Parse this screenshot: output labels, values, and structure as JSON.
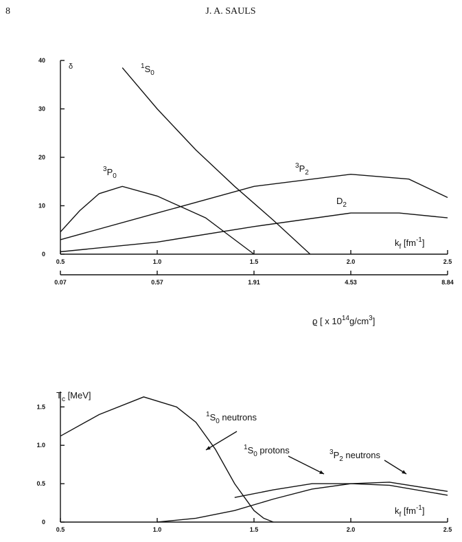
{
  "header": {
    "page_number": "8",
    "author": "J. A. SAULS"
  },
  "chart_data": [
    {
      "type": "line",
      "y_label": "δ",
      "x_label": [
        "k",
        "f",
        " [fm",
        "-1",
        "]"
      ],
      "x2_label": [
        "ϱ [ x 10",
        "14",
        "g/cm",
        "3",
        "]"
      ],
      "xlim": [
        0.5,
        2.5
      ],
      "ylim": [
        0,
        40
      ],
      "xticks": [
        0.5,
        {
          "value": 1,
          "label": "1.0"
        },
        1.5,
        {
          "value": 2,
          "label": "2.0"
        },
        2.5
      ],
      "yticks": [
        0,
        10,
        20,
        30,
        40
      ],
      "x2ticks": [
        {
          "value": 0.5,
          "label": "0.07"
        },
        {
          "value": 1,
          "label": "0.57"
        },
        {
          "value": 1.5,
          "label": "1.91"
        },
        {
          "value": 2,
          "label": "4.53"
        },
        {
          "value": 2.5,
          "label": "8.84"
        }
      ],
      "series": [
        {
          "label_parts": [
            "1",
            "S",
            "0"
          ],
          "color": "#111111",
          "x": [
            0.82,
            1.0,
            1.2,
            1.4,
            1.6,
            1.79
          ],
          "values": [
            38.5,
            30,
            21.5,
            14,
            7,
            0
          ]
        },
        {
          "label_parts": [
            "3",
            "P",
            "0"
          ],
          "color": "#111111",
          "x": [
            0.5,
            0.6,
            0.7,
            0.82,
            1.0,
            1.25,
            1.5
          ],
          "values": [
            4.6,
            9,
            12.5,
            14,
            12,
            7.5,
            0
          ]
        },
        {
          "label_parts": [
            "3",
            "P",
            "2"
          ],
          "color": "#111111",
          "x": [
            0.5,
            1.0,
            1.5,
            2.0,
            2.3,
            2.5
          ],
          "values": [
            3,
            8.5,
            14,
            16.5,
            15.5,
            11.7
          ]
        },
        {
          "label_parts": [
            "D",
            "2"
          ],
          "color": "#111111",
          "x": [
            0.5,
            1.0,
            1.5,
            2.0,
            2.25,
            2.5
          ],
          "values": [
            0.5,
            2.5,
            5.7,
            8.5,
            8.5,
            7.5
          ]
        }
      ]
    },
    {
      "type": "line",
      "y_label": [
        "T",
        "c",
        " [MeV]"
      ],
      "x_label": [
        "k",
        "f",
        " [fm",
        "-1",
        "]"
      ],
      "xlim": [
        0.5,
        2.5
      ],
      "ylim": [
        0,
        1.7
      ],
      "xticks": [
        0.5,
        {
          "value": 1,
          "label": "1.0"
        },
        1.5,
        {
          "value": 2,
          "label": "2.0"
        },
        2.5
      ],
      "yticks": [
        0,
        0.5,
        {
          "value": 1,
          "label": "1.0"
        },
        1.5
      ],
      "series": [
        {
          "label_parts": [
            "1",
            "S",
            "0",
            " neutrons"
          ],
          "color": "#111111",
          "x": [
            0.5,
            0.7,
            0.93,
            1.1,
            1.2,
            1.3,
            1.4,
            1.5,
            1.55,
            1.6
          ],
          "values": [
            1.12,
            1.4,
            1.63,
            1.5,
            1.3,
            0.95,
            0.5,
            0.15,
            0.05,
            0
          ]
        },
        {
          "label_parts": [
            "1",
            "S",
            "0",
            " protons"
          ],
          "color": "#111111",
          "x": [
            1.4,
            1.6,
            1.8,
            2.0,
            2.2,
            2.5
          ],
          "values": [
            0.32,
            0.42,
            0.5,
            0.5,
            0.48,
            0.35
          ]
        },
        {
          "label_parts": [
            "3",
            "P",
            "2",
            " neutrons"
          ],
          "color": "#111111",
          "x": [
            1.0,
            1.2,
            1.4,
            1.6,
            1.8,
            2.0,
            2.2,
            2.5
          ],
          "values": [
            0,
            0.05,
            0.15,
            0.3,
            0.43,
            0.5,
            0.52,
            0.4
          ]
        }
      ]
    }
  ]
}
